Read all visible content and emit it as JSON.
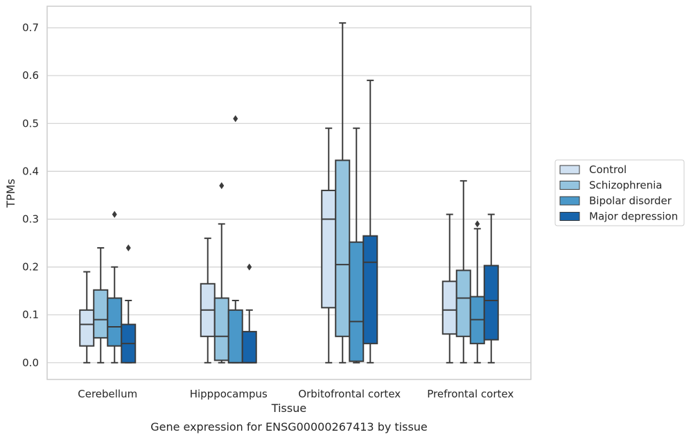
{
  "chart_data": {
    "type": "boxplot",
    "xlabel": "Tissue",
    "ylabel": "TPMs",
    "caption": "Gene expression for ENSG00000267413 by tissue",
    "ylim": [
      -0.035,
      0.745
    ],
    "yticks": [
      0.0,
      0.1,
      0.2,
      0.3,
      0.4,
      0.5,
      0.6,
      0.7
    ],
    "ytick_labels": [
      "0.0",
      "0.1",
      "0.2",
      "0.3",
      "0.4",
      "0.5",
      "0.6",
      "0.7"
    ],
    "grid": "horizontal",
    "legend_position": "outside-right",
    "categories": [
      "Cerebellum",
      "Hipppocampus",
      "Orbitofrontal cortex",
      "Prefrontal cortex"
    ],
    "series": [
      {
        "name": "Control",
        "color": "#d0e1f2",
        "boxes": [
          {
            "whislo": 0.0,
            "q1": 0.035,
            "med": 0.08,
            "q3": 0.11,
            "whishi": 0.19,
            "fliers": []
          },
          {
            "whislo": 0.0,
            "q1": 0.055,
            "med": 0.11,
            "q3": 0.165,
            "whishi": 0.26,
            "fliers": []
          },
          {
            "whislo": 0.0,
            "q1": 0.115,
            "med": 0.3,
            "q3": 0.36,
            "whishi": 0.49,
            "fliers": []
          },
          {
            "whislo": 0.0,
            "q1": 0.06,
            "med": 0.11,
            "q3": 0.17,
            "whishi": 0.31,
            "fliers": []
          }
        ]
      },
      {
        "name": "Schizophrenia",
        "color": "#94c4df",
        "boxes": [
          {
            "whislo": 0.0,
            "q1": 0.052,
            "med": 0.09,
            "q3": 0.152,
            "whishi": 0.24,
            "fliers": []
          },
          {
            "whislo": 0.0,
            "q1": 0.005,
            "med": 0.055,
            "q3": 0.135,
            "whishi": 0.29,
            "fliers": [
              0.37
            ]
          },
          {
            "whislo": 0.0,
            "q1": 0.055,
            "med": 0.205,
            "q3": 0.423,
            "whishi": 0.71,
            "fliers": []
          },
          {
            "whislo": 0.0,
            "q1": 0.055,
            "med": 0.135,
            "q3": 0.193,
            "whishi": 0.38,
            "fliers": []
          }
        ]
      },
      {
        "name": "Bipolar disorder",
        "color": "#4a98c9",
        "boxes": [
          {
            "whislo": 0.0,
            "q1": 0.035,
            "med": 0.075,
            "q3": 0.135,
            "whishi": 0.2,
            "fliers": [
              0.31
            ]
          },
          {
            "whislo": 0.0,
            "q1": 0.0,
            "med": 0.0,
            "q3": 0.11,
            "whishi": 0.13,
            "fliers": [
              0.51
            ]
          },
          {
            "whislo": 0.0,
            "q1": 0.003,
            "med": 0.086,
            "q3": 0.252,
            "whishi": 0.49,
            "fliers": []
          },
          {
            "whislo": 0.0,
            "q1": 0.04,
            "med": 0.09,
            "q3": 0.138,
            "whishi": 0.28,
            "fliers": [
              0.29
            ]
          }
        ]
      },
      {
        "name": "Major depression",
        "color": "#1764ab",
        "boxes": [
          {
            "whislo": 0.0,
            "q1": 0.0,
            "med": 0.04,
            "q3": 0.08,
            "whishi": 0.13,
            "fliers": [
              0.24
            ]
          },
          {
            "whislo": 0.0,
            "q1": 0.0,
            "med": 0.0,
            "q3": 0.065,
            "whishi": 0.11,
            "fliers": [
              0.2
            ]
          },
          {
            "whislo": 0.0,
            "q1": 0.04,
            "med": 0.21,
            "q3": 0.265,
            "whishi": 0.59,
            "fliers": []
          },
          {
            "whislo": 0.0,
            "q1": 0.048,
            "med": 0.13,
            "q3": 0.203,
            "whishi": 0.31,
            "fliers": []
          }
        ]
      }
    ]
  }
}
